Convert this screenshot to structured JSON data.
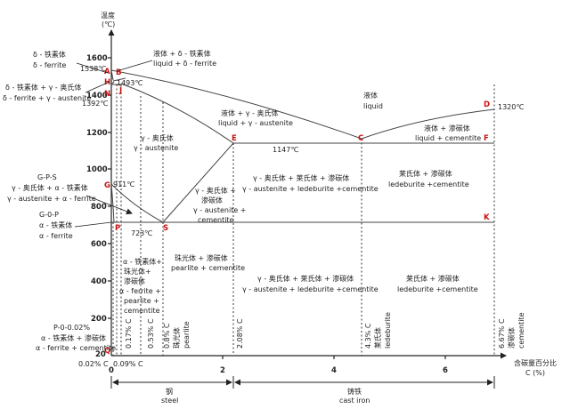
{
  "axes": {
    "y_title_cn": "温度",
    "y_title_unit": "(℃)",
    "x_title_cn": "含碳量百分比",
    "x_title_unit": "C (%)",
    "y_ticks": [
      "1600",
      "1400",
      "1200",
      "1000",
      "800",
      "600",
      "400",
      "200",
      "20"
    ],
    "x_ticks": [
      "0",
      "2",
      "4",
      "6"
    ]
  },
  "points": {
    "A": "A",
    "B": "B",
    "H": "H",
    "J": "J",
    "N": "N",
    "D": "D",
    "E": "E",
    "C": "C",
    "F": "F",
    "G": "G",
    "P": "P",
    "S": "S",
    "K": "K",
    "Q": "Q"
  },
  "temps": {
    "t1538": "1538℃",
    "t1493": "1493℃",
    "t1392": "1392℃",
    "t1320": "1320℃",
    "t1147": "1147℃",
    "t911": "911℃",
    "t723": "723℃"
  },
  "regions": {
    "delta_ferrite_cn": "δ - 铁素体",
    "delta_ferrite_en": "δ - ferrite",
    "delta_gamma_cn": "δ - 铁素体 + γ - 奥氏体",
    "delta_gamma_en": "δ - ferrite + γ - austenite",
    "liq_delta_cn": "液体 + δ - 铁素体",
    "liq_delta_en": "liquid + δ - ferrite",
    "liquid_cn": "液体",
    "liquid_en": "liquid",
    "liq_gamma_cn": "液体 + γ - 奥氏体",
    "liq_gamma_en": "liquid + γ - austenite",
    "liq_cem_cn": "液体 + 渗碳体",
    "liq_cem_en": "liquid + cementite",
    "gamma_cn": "γ - 奥氏体",
    "gamma_en": "γ - austenite",
    "gps_title": "G-P-S",
    "gps_cn": "γ - 奥氏体 + α - 铁素体",
    "gps_en": "γ - austenite + α - ferrite",
    "gqp_title": "G-0-P",
    "gqp_cn": "α - 铁素体",
    "gqp_en": "α - ferrite",
    "gamma_cem_cn1": "γ - 奥氏体 +",
    "gamma_cem_cn2": "渗碳体",
    "gamma_cem_en1": "γ - austenite +",
    "gamma_cem_en2": "cementite",
    "gamma_led_cem_cn": "γ - 奥氏体 + 莱氏体 + 渗碳体",
    "gamma_led_cem_en": "γ - austenite + ledeburite +cementite",
    "led_cem_upper_cn": "莱氏体 + 渗碳体",
    "led_cem_upper_en": "ledeburite +cementite",
    "pearl_cem_cn": "珠光体 + 渗碳体",
    "pearl_cem_en": "pearlite + cementite",
    "afp_cn1": "α - 铁素体+",
    "afp_cn2": "珠光体+",
    "afp_cn3": "渗碳体",
    "afp_en1": "α - ferrite +",
    "afp_en2": "pearlite +",
    "afp_en3": "cementite",
    "lower_mid_cn": "γ - 奥氏体 + 莱氏体 + 渗碳体",
    "lower_mid_en": "γ - austenite + ledeburite +cementite",
    "led_cem_lower_cn": "莱氏体 + 渗碳体",
    "led_cem_lower_en": "ledeburite +cementite",
    "pq_title": "P-0-0.02%",
    "pq_cn": "α - 铁素体 + 渗碳体",
    "pq_en": "α - ferrite + cementite"
  },
  "vertical_labels": {
    "v017": "0.17% C",
    "v053": "0.53% C",
    "v08": "0.8% C",
    "v08_cn": "珠光体",
    "v08_en": "pearlite",
    "v208": "2.08% C",
    "v43": "4.3% C",
    "v43_cn": "莱氏体",
    "v43_en": "ledeburite",
    "v667": "6.67% C",
    "v667_cn": "渗碳体",
    "v667_en": "cementite"
  },
  "bottom": {
    "c002": "0.02% C",
    "c009": "0.09% C",
    "steel_cn": "钢",
    "steel_en": "steel",
    "iron_cn": "铸铁",
    "iron_en": "cast iron"
  }
}
